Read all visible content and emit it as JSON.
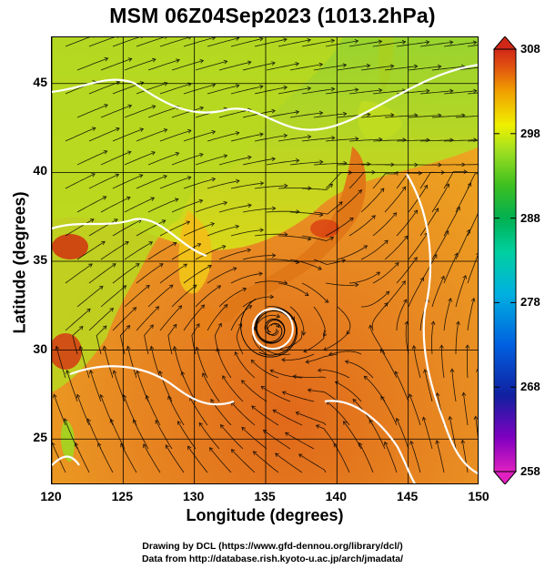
{
  "title": "MSM 06Z04Sep2023 (1013.2hPa)",
  "axes": {
    "xlabel": "Longitude (degrees)",
    "ylabel": "Latitude  (degrees)",
    "xlim": [
      120,
      150
    ],
    "ylim": [
      22.4,
      47.6
    ],
    "xticks": [
      "120",
      "125",
      "130",
      "135",
      "140",
      "145",
      "150"
    ],
    "yticks": [
      "25",
      "30",
      "35",
      "40",
      "45"
    ],
    "grid": true
  },
  "colorbar": {
    "min": 258,
    "max": 308,
    "ticks": [
      "308",
      "298",
      "288",
      "278",
      "268",
      "258"
    ],
    "colors": [
      "#e020c0",
      "#8000c0",
      "#1020a0",
      "#0060e0",
      "#00b0e0",
      "#00d0a0",
      "#00b050",
      "#40c020",
      "#a0e020",
      "#f0f000",
      "#f0a000",
      "#e05010",
      "#d02818"
    ]
  },
  "typhoon": {
    "lon": 135.5,
    "lat": 31.2
  },
  "credits": [
    "Drawing by DCL (https://www.gfd-dennou.org/library/dcl/)",
    "Data from http://database.rish.kyoto-u.ac.jp/arch/jmadata/"
  ],
  "chart_data": {
    "type": "heatmap",
    "title": "MSM 06Z04Sep2023 (1013.2hPa)",
    "xlabel": "Longitude (degrees)",
    "ylabel": "Latitude  (degrees)",
    "xlim": [
      120,
      150
    ],
    "ylim": [
      22.4,
      47.6
    ],
    "colorbar_range": [
      258,
      308
    ],
    "overlay": "streamlines",
    "vortex_center": {
      "lon": 135.5,
      "lat": 31.2
    }
  }
}
